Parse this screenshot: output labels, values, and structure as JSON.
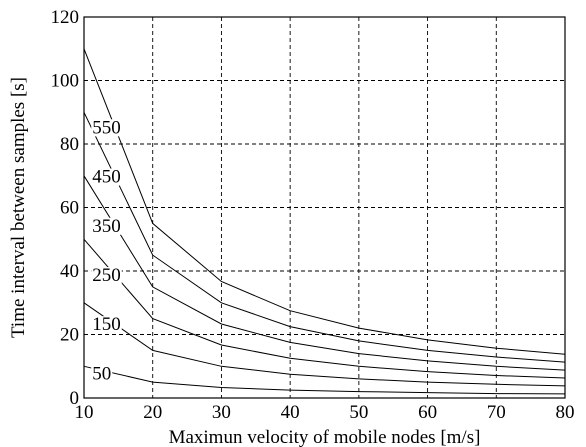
{
  "chart_data": {
    "type": "line",
    "xlabel": "Maximun velocity of mobile nodes [m/s]",
    "ylabel": "Time interval between samples [s]",
    "xlim": [
      10,
      80
    ],
    "ylim": [
      0,
      120
    ],
    "xticks": [
      10,
      20,
      30,
      40,
      50,
      60,
      70,
      80
    ],
    "yticks": [
      0,
      20,
      40,
      60,
      80,
      100,
      120
    ],
    "grid": true,
    "x": [
      10,
      20,
      30,
      40,
      50,
      60,
      70,
      80
    ],
    "series": [
      {
        "name": "550",
        "values": [
          110,
          55,
          36.7,
          27.5,
          22,
          18.3,
          15.7,
          13.8
        ]
      },
      {
        "name": "450",
        "values": [
          90,
          45,
          30,
          22.5,
          18,
          15,
          12.9,
          11.3
        ]
      },
      {
        "name": "350",
        "values": [
          70,
          35,
          23.3,
          17.5,
          14,
          11.7,
          10,
          8.8
        ]
      },
      {
        "name": "250",
        "values": [
          50,
          25,
          16.7,
          12.5,
          10,
          8.3,
          7.1,
          6.3
        ]
      },
      {
        "name": "150",
        "values": [
          30,
          15,
          10,
          7.5,
          6,
          5,
          4.3,
          3.8
        ]
      },
      {
        "name": "50",
        "values": [
          10,
          5,
          3.3,
          2.5,
          2,
          1.7,
          1.4,
          1.3
        ]
      }
    ]
  }
}
